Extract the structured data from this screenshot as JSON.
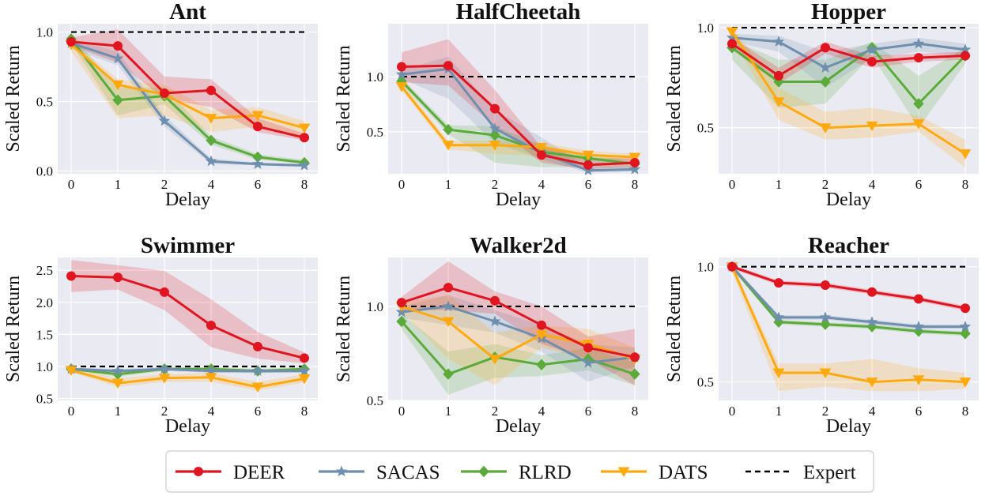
{
  "colors": {
    "DEER": "#e0151f",
    "SACAS": "#6f8fae",
    "RLRD": "#5aab3a",
    "DATS": "#ffa90f",
    "Expert": "#000000",
    "panel_bg": "#eaeaf2",
    "grid": "#ffffff"
  },
  "legend": {
    "entries": [
      "DEER",
      "SACAS",
      "RLRD",
      "DATS",
      "Expert"
    ],
    "markers": {
      "DEER": "circle",
      "SACAS": "star",
      "RLRD": "diamond",
      "DATS": "triangle-down",
      "Expert": "dashed-line"
    }
  },
  "chart_data": [
    {
      "type": "line",
      "title": "Ant",
      "xlabel": "Delay",
      "ylabel": "Scaled Return",
      "categories": [
        "0",
        "1",
        "2",
        "4",
        "6",
        "8"
      ],
      "ylim": [
        -0.02,
        1.06
      ],
      "yticks": [
        "0.0",
        "0.5",
        "1.0"
      ],
      "ytick_values": [
        0.0,
        0.5,
        1.0
      ],
      "expert": 1.0,
      "series": [
        {
          "name": "DEER",
          "values": [
            0.93,
            0.9,
            0.56,
            0.58,
            0.32,
            0.24
          ],
          "lower": [
            0.9,
            0.78,
            0.52,
            0.46,
            0.28,
            0.22
          ],
          "upper": [
            0.96,
            1.02,
            0.68,
            0.66,
            0.38,
            0.27
          ]
        },
        {
          "name": "SACAS",
          "values": [
            0.92,
            0.81,
            0.36,
            0.07,
            0.05,
            0.04
          ],
          "lower": [
            0.88,
            0.76,
            0.32,
            0.05,
            0.04,
            0.03
          ],
          "upper": [
            0.95,
            0.86,
            0.4,
            0.09,
            0.06,
            0.05
          ]
        },
        {
          "name": "RLRD",
          "values": [
            0.95,
            0.51,
            0.54,
            0.22,
            0.1,
            0.06
          ],
          "lower": [
            0.92,
            0.4,
            0.48,
            0.19,
            0.08,
            0.05
          ],
          "upper": [
            0.98,
            0.6,
            0.6,
            0.25,
            0.12,
            0.08
          ]
        },
        {
          "name": "DATS",
          "values": [
            0.91,
            0.62,
            0.55,
            0.38,
            0.4,
            0.31
          ],
          "lower": [
            0.86,
            0.38,
            0.4,
            0.28,
            0.32,
            0.25
          ],
          "upper": [
            0.94,
            0.66,
            0.62,
            0.44,
            0.46,
            0.36
          ]
        }
      ]
    },
    {
      "type": "line",
      "title": "HalfCheetah",
      "xlabel": "Delay",
      "ylabel": "Scaled Return",
      "categories": [
        "0",
        "1",
        "2",
        "4",
        "6",
        "8"
      ],
      "ylim": [
        0.12,
        1.48
      ],
      "yticks": [
        "0.5",
        "1.0"
      ],
      "ytick_values": [
        0.5,
        1.0
      ],
      "expert": 1.0,
      "series": [
        {
          "name": "DEER",
          "values": [
            1.09,
            1.1,
            0.71,
            0.29,
            0.2,
            0.22
          ],
          "lower": [
            0.95,
            0.92,
            0.55,
            0.22,
            0.16,
            0.18
          ],
          "upper": [
            1.22,
            1.34,
            0.88,
            0.36,
            0.26,
            0.26
          ]
        },
        {
          "name": "SACAS",
          "values": [
            1.02,
            1.07,
            0.53,
            0.31,
            0.15,
            0.16
          ],
          "lower": [
            0.98,
            0.8,
            0.4,
            0.25,
            0.13,
            0.14
          ],
          "upper": [
            1.06,
            1.18,
            0.7,
            0.45,
            0.18,
            0.18
          ]
        },
        {
          "name": "RLRD",
          "values": [
            0.96,
            0.52,
            0.47,
            0.32,
            0.26,
            0.21
          ],
          "lower": [
            0.93,
            0.48,
            0.22,
            0.18,
            0.18,
            0.17
          ],
          "upper": [
            0.99,
            0.56,
            0.55,
            0.38,
            0.3,
            0.24
          ]
        },
        {
          "name": "DATS",
          "values": [
            0.91,
            0.38,
            0.38,
            0.36,
            0.29,
            0.27
          ],
          "lower": [
            0.88,
            0.34,
            0.3,
            0.28,
            0.24,
            0.24
          ],
          "upper": [
            0.95,
            0.42,
            0.42,
            0.4,
            0.33,
            0.3
          ]
        }
      ]
    },
    {
      "type": "line",
      "title": "Hopper",
      "xlabel": "Delay",
      "ylabel": "Scaled Return",
      "categories": [
        "0",
        "1",
        "2",
        "4",
        "6",
        "8"
      ],
      "ylim": [
        0.27,
        1.02
      ],
      "yticks": [
        "0.5",
        "1.0"
      ],
      "ytick_values": [
        0.5,
        1.0
      ],
      "expert": 1.0,
      "series": [
        {
          "name": "DEER",
          "values": [
            0.92,
            0.76,
            0.9,
            0.83,
            0.85,
            0.86
          ],
          "lower": [
            0.89,
            0.72,
            0.87,
            0.8,
            0.83,
            0.84
          ],
          "upper": [
            0.95,
            0.8,
            0.93,
            0.86,
            0.87,
            0.88
          ]
        },
        {
          "name": "SACAS",
          "values": [
            0.95,
            0.93,
            0.8,
            0.89,
            0.92,
            0.89
          ],
          "lower": [
            0.93,
            0.88,
            0.7,
            0.85,
            0.88,
            0.86
          ],
          "upper": [
            0.97,
            0.96,
            0.88,
            0.92,
            0.95,
            0.92
          ]
        },
        {
          "name": "RLRD",
          "values": [
            0.9,
            0.73,
            0.73,
            0.9,
            0.62,
            0.86
          ],
          "lower": [
            0.84,
            0.6,
            0.62,
            0.86,
            0.5,
            0.82
          ],
          "upper": [
            0.94,
            0.84,
            0.84,
            0.93,
            0.76,
            0.9
          ]
        },
        {
          "name": "DATS",
          "values": [
            0.98,
            0.63,
            0.5,
            0.51,
            0.52,
            0.37
          ],
          "lower": [
            0.95,
            0.54,
            0.44,
            0.45,
            0.48,
            0.3
          ],
          "upper": [
            1.0,
            0.7,
            0.58,
            0.6,
            0.56,
            0.44
          ]
        }
      ]
    },
    {
      "type": "line",
      "title": "Swimmer",
      "xlabel": "Delay",
      "ylabel": "Scaled Return",
      "categories": [
        "0",
        "1",
        "2",
        "4",
        "6",
        "8"
      ],
      "ylim": [
        0.47,
        2.7
      ],
      "yticks": [
        "0.5",
        "1.0",
        "1.5",
        "2.0",
        "2.5"
      ],
      "ytick_values": [
        0.5,
        1.0,
        1.5,
        2.0,
        2.5
      ],
      "expert": 1.0,
      "series": [
        {
          "name": "DEER",
          "values": [
            2.41,
            2.39,
            2.16,
            1.64,
            1.31,
            1.13
          ],
          "lower": [
            2.16,
            2.2,
            1.88,
            1.3,
            1.12,
            1.05
          ],
          "upper": [
            2.66,
            2.58,
            2.49,
            2.05,
            1.54,
            1.22
          ]
        },
        {
          "name": "SACAS",
          "values": [
            0.96,
            0.93,
            0.96,
            0.93,
            0.93,
            0.93
          ],
          "lower": [
            0.94,
            0.9,
            0.93,
            0.9,
            0.9,
            0.9
          ],
          "upper": [
            0.98,
            0.96,
            0.99,
            0.96,
            0.96,
            0.96
          ]
        },
        {
          "name": "RLRD",
          "values": [
            0.96,
            0.88,
            0.96,
            0.96,
            0.93,
            0.96
          ],
          "lower": [
            0.94,
            0.84,
            0.93,
            0.93,
            0.89,
            0.93
          ],
          "upper": [
            0.98,
            0.92,
            0.99,
            0.99,
            0.96,
            0.99
          ]
        },
        {
          "name": "DATS",
          "values": [
            0.94,
            0.74,
            0.82,
            0.83,
            0.68,
            0.81
          ],
          "lower": [
            0.91,
            0.68,
            0.76,
            0.76,
            0.62,
            0.75
          ],
          "upper": [
            0.97,
            0.82,
            0.88,
            0.9,
            0.76,
            0.88
          ]
        }
      ]
    },
    {
      "type": "line",
      "title": "Walker2d",
      "xlabel": "Delay",
      "ylabel": "Scaled Return",
      "categories": [
        "0",
        "1",
        "2",
        "4",
        "6",
        "8"
      ],
      "ylim": [
        0.5,
        1.26
      ],
      "yticks": [
        "0.5",
        "1.0"
      ],
      "ytick_values": [
        0.5,
        1.0
      ],
      "expert": 1.0,
      "series": [
        {
          "name": "DEER",
          "values": [
            1.02,
            1.1,
            1.03,
            0.9,
            0.78,
            0.73
          ],
          "lower": [
            0.98,
            0.98,
            0.96,
            0.8,
            0.72,
            0.58
          ],
          "upper": [
            1.05,
            1.24,
            1.08,
            1.0,
            0.84,
            0.88
          ]
        },
        {
          "name": "SACAS",
          "values": [
            0.97,
            1.0,
            0.92,
            0.83,
            0.7,
            0.73
          ],
          "lower": [
            0.94,
            0.9,
            0.86,
            0.76,
            0.6,
            0.68
          ],
          "upper": [
            1.0,
            1.06,
            0.98,
            0.9,
            0.8,
            0.78
          ]
        },
        {
          "name": "RLRD",
          "values": [
            0.92,
            0.64,
            0.73,
            0.69,
            0.72,
            0.64
          ],
          "lower": [
            0.88,
            0.53,
            0.62,
            0.63,
            0.66,
            0.58
          ],
          "upper": [
            0.96,
            0.76,
            0.8,
            0.74,
            0.78,
            0.7
          ]
        },
        {
          "name": "DATS",
          "values": [
            1.0,
            0.92,
            0.72,
            0.85,
            0.8,
            0.72
          ],
          "lower": [
            0.97,
            0.72,
            0.58,
            0.78,
            0.72,
            0.66
          ],
          "upper": [
            1.02,
            1.06,
            0.86,
            0.9,
            0.88,
            0.78
          ]
        }
      ]
    },
    {
      "type": "line",
      "title": "Reacher",
      "xlabel": "Delay",
      "ylabel": "Scaled Return",
      "categories": [
        "0",
        "1",
        "2",
        "4",
        "6",
        "8"
      ],
      "ylim": [
        0.42,
        1.04
      ],
      "yticks": [
        "0.5",
        "1.0"
      ],
      "ytick_values": [
        0.5,
        1.0
      ],
      "expert": 1.0,
      "series": [
        {
          "name": "DEER",
          "values": [
            1.0,
            0.93,
            0.92,
            0.89,
            0.86,
            0.82
          ],
          "lower": [
            0.99,
            0.92,
            0.91,
            0.88,
            0.85,
            0.81
          ],
          "upper": [
            1.01,
            0.94,
            0.93,
            0.9,
            0.87,
            0.83
          ]
        },
        {
          "name": "SACAS",
          "values": [
            1.0,
            0.78,
            0.78,
            0.76,
            0.74,
            0.74
          ],
          "lower": [
            0.99,
            0.77,
            0.77,
            0.75,
            0.73,
            0.73
          ],
          "upper": [
            1.01,
            0.79,
            0.79,
            0.77,
            0.75,
            0.75
          ]
        },
        {
          "name": "RLRD",
          "values": [
            1.0,
            0.76,
            0.75,
            0.74,
            0.72,
            0.71
          ],
          "lower": [
            0.99,
            0.75,
            0.74,
            0.73,
            0.71,
            0.7
          ],
          "upper": [
            1.01,
            0.77,
            0.76,
            0.75,
            0.73,
            0.72
          ]
        },
        {
          "name": "DATS",
          "values": [
            1.0,
            0.54,
            0.54,
            0.5,
            0.51,
            0.5
          ],
          "lower": [
            0.98,
            0.46,
            0.48,
            0.46,
            0.46,
            0.47
          ],
          "upper": [
            1.01,
            0.58,
            0.58,
            0.6,
            0.56,
            0.54
          ]
        }
      ]
    }
  ]
}
